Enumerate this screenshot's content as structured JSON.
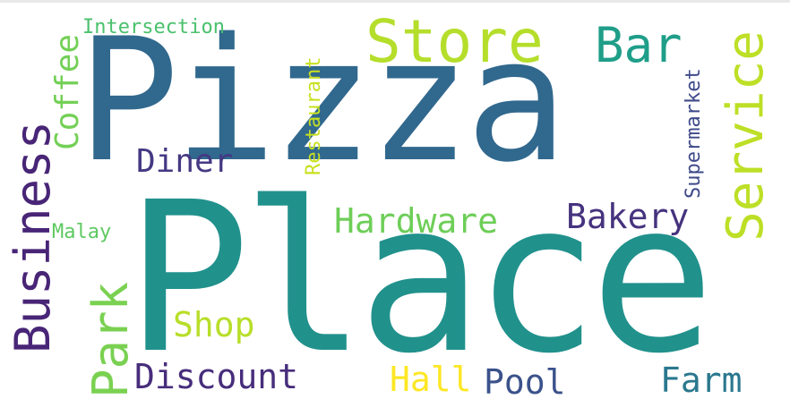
{
  "words": {
    "pizza": "Pizza",
    "place": "Place",
    "store": "Store",
    "bar": "Bar",
    "service": "Service",
    "business": "Business",
    "coffee": "Coffee",
    "intersection": "Intersection",
    "restaurant": "Restaurant",
    "supermarket": "Supermarket",
    "diner": "Diner",
    "hardware": "Hardware",
    "bakery": "Bakery",
    "malay": "Malay",
    "park": "Park",
    "shop": "Shop",
    "discount": "Discount",
    "hall": "Hall",
    "pool": "Pool",
    "farm": "Farm"
  },
  "colors": {
    "pizza": "#31688e",
    "place": "#21918c",
    "store": "#b5de2b",
    "bar": "#1f9e89",
    "service": "#bddf26",
    "business": "#482576",
    "coffee": "#73d056",
    "intersection": "#4ac16d",
    "restaurant": "#c8e020",
    "supermarket": "#3e4a89",
    "diner": "#443983",
    "hardware": "#6ece58",
    "bakery": "#46337e",
    "malay": "#5ec962",
    "park": "#7ad151",
    "shop": "#b8de29",
    "discount": "#472d7b",
    "hall": "#fde725",
    "pool": "#3b528b",
    "farm": "#2a788e"
  }
}
